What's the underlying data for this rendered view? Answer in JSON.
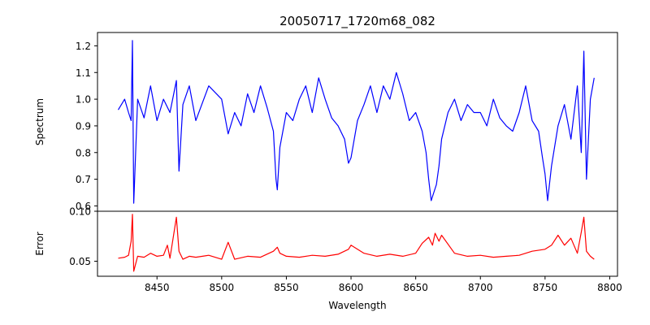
{
  "chart_data": [
    {
      "type": "line",
      "panel": "top",
      "title": "20050717_1720m68_082",
      "xlabel": "",
      "ylabel": "Spectrum",
      "xlim": [
        8404,
        8806
      ],
      "ylim": [
        0.58,
        1.25
      ],
      "yticks": [
        0.6,
        0.7,
        0.8,
        0.9,
        1.0,
        1.1,
        1.2
      ],
      "ytick_labels": [
        "0.6",
        "0.7",
        "0.8",
        "0.9",
        "1.0",
        "1.1",
        "1.2"
      ],
      "grid": false,
      "series": [
        {
          "color": "#0000ff",
          "x": [
            8420,
            8425,
            8428,
            8430,
            8431,
            8432,
            8435,
            8440,
            8445,
            8450,
            8455,
            8460,
            8465,
            8467,
            8470,
            8475,
            8480,
            8490,
            8500,
            8505,
            8510,
            8515,
            8520,
            8525,
            8530,
            8535,
            8540,
            8542,
            8543,
            8545,
            8550,
            8555,
            8560,
            8565,
            8570,
            8575,
            8580,
            8585,
            8590,
            8595,
            8598,
            8600,
            8605,
            8610,
            8615,
            8620,
            8625,
            8630,
            8635,
            8640,
            8645,
            8650,
            8655,
            8658,
            8660,
            8662,
            8664,
            8666,
            8668,
            8670,
            8675,
            8680,
            8685,
            8690,
            8695,
            8700,
            8705,
            8710,
            8715,
            8720,
            8725,
            8730,
            8735,
            8740,
            8745,
            8748,
            8750,
            8752,
            8755,
            8760,
            8765,
            8770,
            8775,
            8778,
            8780,
            8782,
            8785,
            8788
          ],
          "y": [
            0.96,
            1.0,
            0.95,
            0.92,
            1.22,
            0.61,
            1.0,
            0.93,
            1.05,
            0.92,
            1.0,
            0.95,
            1.07,
            0.73,
            0.98,
            1.05,
            0.92,
            1.05,
            1.0,
            0.87,
            0.95,
            0.9,
            1.02,
            0.95,
            1.05,
            0.97,
            0.88,
            0.7,
            0.66,
            0.82,
            0.95,
            0.92,
            1.0,
            1.05,
            0.95,
            1.08,
            1.0,
            0.93,
            0.9,
            0.85,
            0.76,
            0.78,
            0.92,
            0.98,
            1.05,
            0.95,
            1.05,
            1.0,
            1.1,
            1.02,
            0.92,
            0.95,
            0.88,
            0.8,
            0.7,
            0.62,
            0.65,
            0.68,
            0.75,
            0.85,
            0.95,
            1.0,
            0.92,
            0.98,
            0.95,
            0.95,
            0.9,
            1.0,
            0.93,
            0.9,
            0.88,
            0.95,
            1.05,
            0.92,
            0.88,
            0.78,
            0.72,
            0.62,
            0.75,
            0.9,
            0.98,
            0.85,
            1.05,
            0.8,
            1.18,
            0.7,
            1.0,
            1.08
          ]
        }
      ]
    },
    {
      "type": "line",
      "panel": "bottom",
      "title": "",
      "xlabel": "Wavelength",
      "ylabel": "Error",
      "xlim": [
        8404,
        8806
      ],
      "ylim": [
        0.035,
        0.1
      ],
      "xticks": [
        8450,
        8500,
        8550,
        8600,
        8650,
        8700,
        8750,
        8800
      ],
      "xtick_labels": [
        "8450",
        "8500",
        "8550",
        "8600",
        "8650",
        "8700",
        "8750",
        "8800"
      ],
      "yticks": [
        0.05,
        0.1
      ],
      "ytick_labels": [
        "0.05",
        "0.10"
      ],
      "grid": false,
      "series": [
        {
          "color": "#ff0000",
          "x": [
            8420,
            8425,
            8428,
            8430,
            8431,
            8432,
            8435,
            8440,
            8445,
            8450,
            8455,
            8458,
            8460,
            8465,
            8467,
            8470,
            8475,
            8480,
            8490,
            8500,
            8505,
            8510,
            8520,
            8530,
            8540,
            8543,
            8545,
            8550,
            8560,
            8570,
            8580,
            8590,
            8598,
            8600,
            8610,
            8620,
            8630,
            8640,
            8650,
            8655,
            8660,
            8663,
            8665,
            8668,
            8670,
            8680,
            8690,
            8700,
            8710,
            8720,
            8730,
            8740,
            8750,
            8755,
            8760,
            8765,
            8770,
            8775,
            8778,
            8780,
            8782,
            8785,
            8788
          ],
          "y": [
            0.053,
            0.054,
            0.056,
            0.07,
            0.097,
            0.04,
            0.055,
            0.054,
            0.058,
            0.055,
            0.056,
            0.066,
            0.053,
            0.094,
            0.06,
            0.052,
            0.055,
            0.054,
            0.056,
            0.052,
            0.069,
            0.052,
            0.055,
            0.054,
            0.06,
            0.064,
            0.058,
            0.055,
            0.054,
            0.056,
            0.055,
            0.057,
            0.062,
            0.066,
            0.058,
            0.055,
            0.057,
            0.055,
            0.058,
            0.068,
            0.074,
            0.066,
            0.078,
            0.07,
            0.076,
            0.058,
            0.055,
            0.056,
            0.054,
            0.055,
            0.056,
            0.06,
            0.062,
            0.066,
            0.076,
            0.066,
            0.073,
            0.058,
            0.079,
            0.094,
            0.06,
            0.055,
            0.052
          ]
        }
      ]
    }
  ]
}
